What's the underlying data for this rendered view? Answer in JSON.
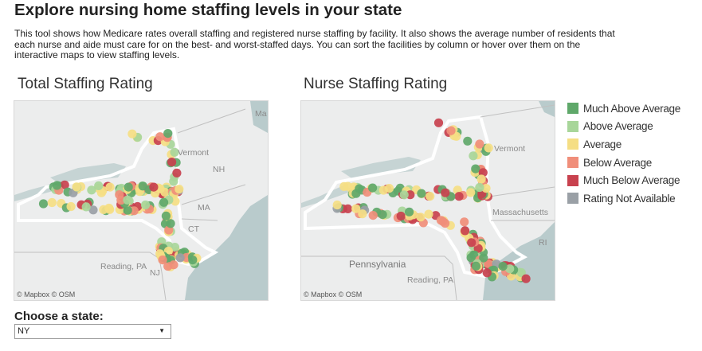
{
  "header": {
    "title": "Explore nursing home staffing levels in your state",
    "description": "This tool shows how Medicare rates overall staffing and registered nurse staffing by facility. It also shows the average number of residents that each nurse and aide must care for on the best- and worst-staffed days. You can sort the facilities by column or hover over them on the interactive maps to view staffing levels."
  },
  "maps": {
    "total": {
      "title": "Total Staffing Rating",
      "labels": {
        "ma_top": "Ma",
        "vermont": "Vermont",
        "nh": "NH",
        "ma": "MA",
        "ct": "CT",
        "reading": "Reading, PA",
        "nj": "NJ"
      },
      "credit": "© Mapbox  © OSM"
    },
    "nurse": {
      "title": "Nurse Staffing Rating",
      "labels": {
        "vermont": "Vermont",
        "massachusetts": "Massachusetts",
        "ri": "RI",
        "pennsylvania": "Pennsylvania",
        "reading": "Reading, PA"
      },
      "credit": "© Mapbox  © OSM"
    }
  },
  "legend": [
    {
      "label": "Much Above Average",
      "color": "#5fa86a"
    },
    {
      "label": "Above Average",
      "color": "#a8d69a"
    },
    {
      "label": "Average",
      "color": "#f5de84"
    },
    {
      "label": "Below Average",
      "color": "#f08e7a"
    },
    {
      "label": "Much Below Average",
      "color": "#c8414e"
    },
    {
      "label": "Rating Not Available",
      "color": "#9aa0a6"
    }
  ],
  "state_selector": {
    "label": "Choose a state:",
    "value": "NY"
  }
}
